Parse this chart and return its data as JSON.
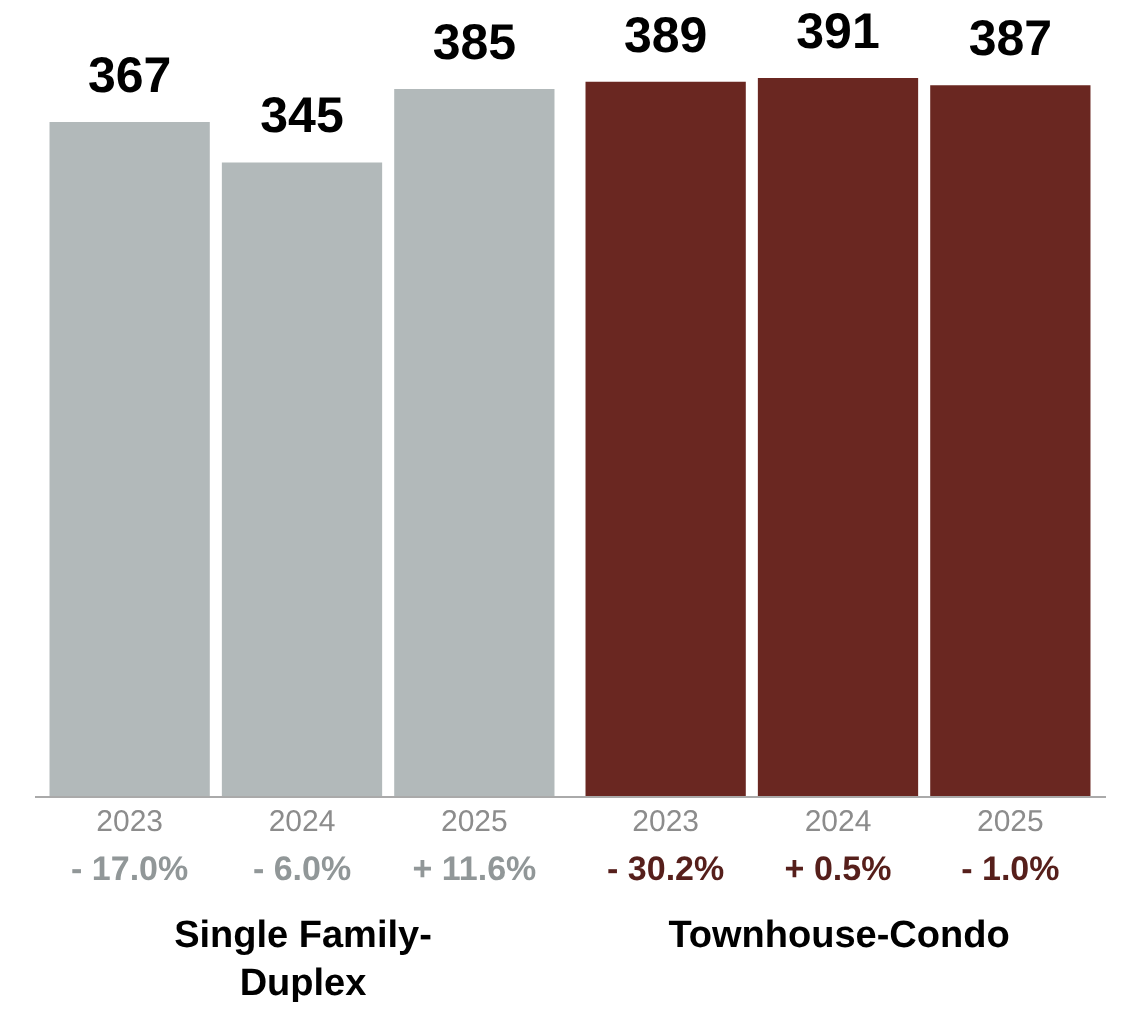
{
  "chart_data": [
    {
      "type": "bar",
      "categories": [
        "2023",
        "2024",
        "2025"
      ],
      "values": [
        367,
        345,
        385
      ],
      "color": "#b2b9ba",
      "data_labels": true,
      "tick_labels": "x",
      "xlabel": "Single Family-Duplex",
      "annotations": [
        "- 17.0%",
        "- 6.0%",
        "+ 11.6%"
      ]
    },
    {
      "type": "bar",
      "categories": [
        "2023",
        "2024",
        "2025"
      ],
      "values": [
        389,
        391,
        387
      ],
      "color": "#6a2721",
      "data_labels": true,
      "tick_labels": "x",
      "xlabel": "Townhouse-Condo",
      "annotations": [
        "- 30.2%",
        "+ 0.5%",
        "- 1.0%"
      ]
    }
  ]
}
